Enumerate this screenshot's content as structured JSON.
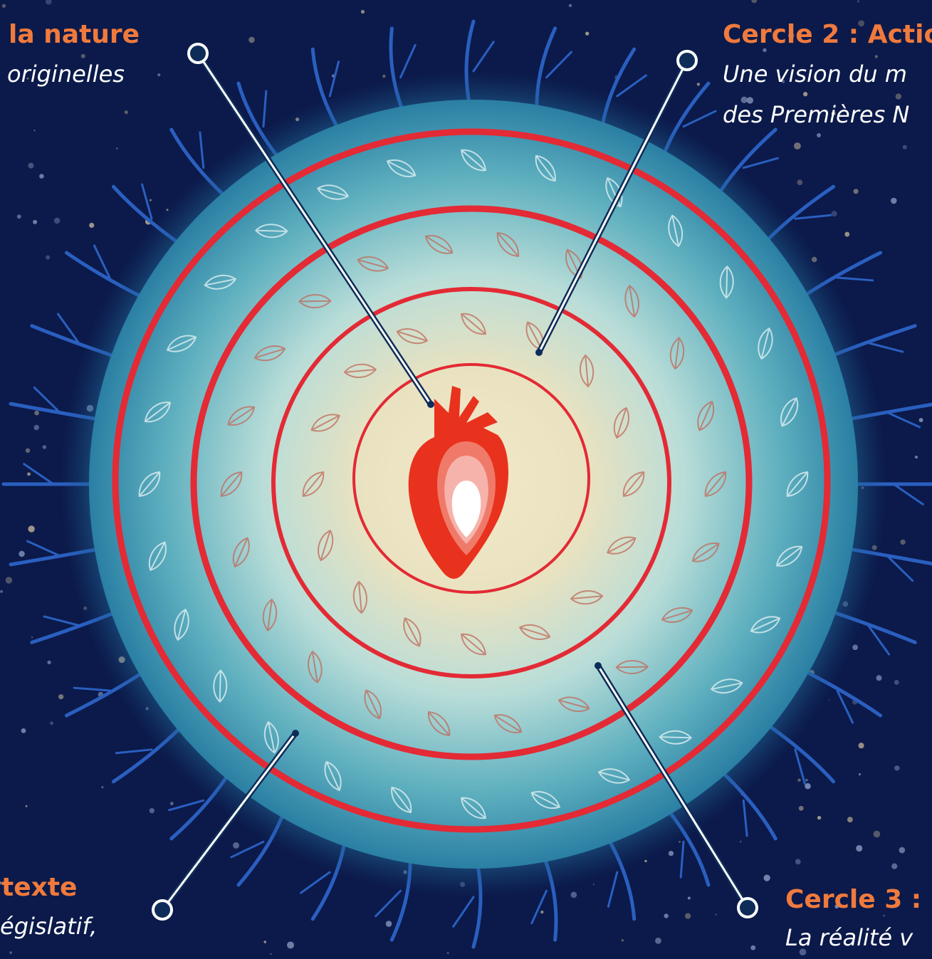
{
  "labels": [
    {
      "title": "la nature",
      "lines": [
        "originelles"
      ]
    },
    {
      "title": "Cercle 2 : Actio",
      "lines": [
        "Une vision du m",
        "des Premières N"
      ]
    },
    {
      "title": "texte",
      "lines": [
        "égislatif,"
      ]
    },
    {
      "title": "Cercle 3 : ",
      "lines": [
        "La réalité v"
      ]
    }
  ]
}
